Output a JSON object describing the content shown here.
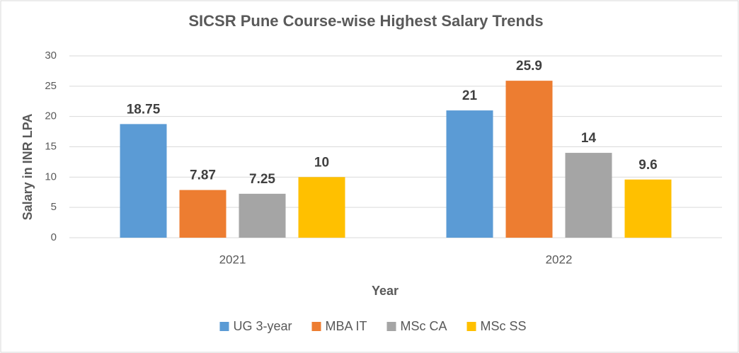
{
  "chart_data": {
    "type": "bar",
    "title": "SICSR Pune Course-wise Highest Salary Trends",
    "x_label": "Year",
    "y_label": "Salary in INR LPA",
    "categories": [
      "2021",
      "2022"
    ],
    "series": [
      {
        "name": "UG 3-year",
        "color": "#5b9bd5",
        "values": [
          18.75,
          21
        ]
      },
      {
        "name": "MBA IT",
        "color": "#ed7d31",
        "values": [
          7.87,
          25.9
        ]
      },
      {
        "name": "MSc CA",
        "color": "#a5a5a5",
        "values": [
          7.25,
          14
        ]
      },
      {
        "name": "MSc SS",
        "color": "#ffc000",
        "values": [
          10,
          9.6
        ]
      }
    ],
    "ylim": [
      0,
      30
    ],
    "yticks": [
      0,
      5,
      10,
      15,
      20,
      25,
      30
    ],
    "grid": true,
    "legend": "bottom"
  }
}
